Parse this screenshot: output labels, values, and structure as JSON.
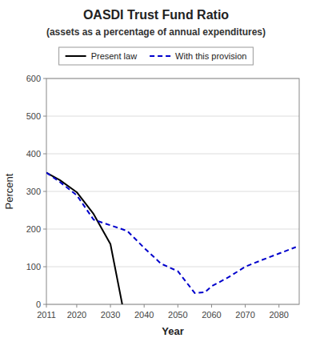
{
  "chart_data": {
    "type": "line",
    "title": "OASDI Trust Fund Ratio",
    "subtitle": "(assets as a percentage of annual expenditures)",
    "x_label": "Year",
    "y_label": "Percent",
    "xlim": [
      2011,
      2086
    ],
    "xticks": [
      2011,
      2020,
      2030,
      2040,
      2050,
      2060,
      2070,
      2080
    ],
    "ylim": [
      0,
      600
    ],
    "yticks": [
      0,
      100,
      200,
      300,
      400,
      500,
      600
    ],
    "grid": true,
    "legend": "top",
    "series": [
      {
        "name": "Present law",
        "color": "#000000",
        "line_style": "solid",
        "x": [
          2011,
          2015,
          2020,
          2025,
          2030,
          2033.5
        ],
        "values": [
          350,
          330,
          298,
          240,
          160,
          0
        ]
      },
      {
        "name": "With this provision",
        "color": "#0000CC",
        "line_style": "dashed",
        "x": [
          2011,
          2015,
          2020,
          2025,
          2030,
          2035,
          2040,
          2045,
          2050,
          2055,
          2058,
          2060,
          2065,
          2070,
          2075,
          2080,
          2085
        ],
        "values": [
          350,
          325,
          290,
          225,
          210,
          195,
          150,
          108,
          88,
          30,
          32,
          48,
          72,
          100,
          118,
          135,
          152
        ]
      }
    ]
  }
}
